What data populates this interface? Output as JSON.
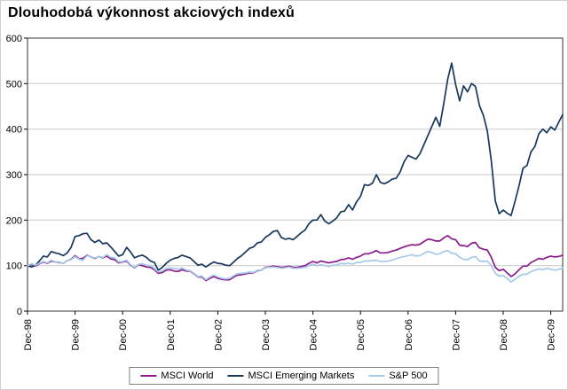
{
  "window": {
    "title": "Dlouhodobá výkonnost akciových indexů"
  },
  "chart_data": {
    "type": "line",
    "title": "Dlouhodobá výkonnost akciových indexů",
    "x_unit": "month",
    "x_tick_labels": [
      "Dec-98",
      "Dec-99",
      "Dec-00",
      "Dec-01",
      "Dec-02",
      "Dec-03",
      "Dec-04",
      "Dec-05",
      "Dec-06",
      "Dec-07",
      "Dec-08",
      "Dec-09"
    ],
    "x_tick_step": 12,
    "ylim": [
      0,
      600
    ],
    "y_ticks": [
      0,
      100,
      200,
      300,
      400,
      500,
      600
    ],
    "grid": "horizontal",
    "grid_color": "#c9c9c9",
    "axis_color": "#000000",
    "legend_position": "bottom",
    "series": [
      {
        "name": "MSCI World",
        "color": "#8b1a8b",
        "values": [
          100,
          102,
          99,
          104,
          108,
          105,
          110,
          108,
          107,
          105,
          111,
          114,
          122,
          115,
          116,
          123,
          119,
          116,
          120,
          117,
          121,
          115,
          113,
          106,
          108,
          110,
          101,
          95,
          102,
          100,
          97,
          96,
          91,
          83,
          85,
          90,
          91,
          88,
          87,
          91,
          88,
          88,
          82,
          75,
          75,
          67,
          72,
          76,
          72,
          70,
          69,
          69,
          75,
          79,
          80,
          82,
          84,
          84,
          89,
          90,
          96,
          97,
          99,
          98,
          96,
          97,
          99,
          96,
          96,
          98,
          100,
          105,
          109,
          106,
          110,
          108,
          106,
          108,
          109,
          113,
          114,
          117,
          114,
          118,
          121,
          126,
          126,
          129,
          133,
          128,
          128,
          129,
          132,
          134,
          138,
          141,
          144,
          146,
          145,
          147,
          153,
          158,
          157,
          154,
          154,
          161,
          166,
          159,
          157,
          145,
          144,
          142,
          149,
          151,
          139,
          136,
          134,
          118,
          96,
          89,
          92,
          84,
          76,
          82,
          91,
          99,
          99,
          107,
          111,
          116,
          114,
          118,
          121,
          119,
          120,
          123
        ]
      },
      {
        "name": "MSCI Emerging Markets",
        "color": "#17375d",
        "values": [
          100,
          97,
          101,
          110,
          121,
          119,
          131,
          128,
          126,
          122,
          128,
          140,
          164,
          166,
          170,
          171,
          157,
          151,
          156,
          148,
          150,
          141,
          131,
          121,
          124,
          140,
          130,
          117,
          121,
          123,
          118,
          110,
          107,
          90,
          96,
          105,
          112,
          116,
          118,
          123,
          120,
          117,
          109,
          101,
          103,
          97,
          103,
          108,
          105,
          104,
          101,
          100,
          108,
          116,
          122,
          130,
          138,
          141,
          150,
          152,
          162,
          168,
          175,
          177,
          162,
          158,
          160,
          157,
          164,
          172,
          178,
          192,
          200,
          200,
          212,
          198,
          192,
          198,
          205,
          218,
          220,
          234,
          222,
          240,
          252,
          278,
          276,
          281,
          300,
          283,
          280,
          284,
          290,
          292,
          306,
          328,
          342,
          338,
          334,
          346,
          366,
          386,
          406,
          426,
          406,
          456,
          510,
          545,
          498,
          462,
          495,
          482,
          500,
          494,
          452,
          430,
          396,
          330,
          242,
          214,
          222,
          215,
          210,
          242,
          276,
          314,
          320,
          350,
          362,
          390,
          400,
          392,
          405,
          398,
          415,
          432
        ]
      },
      {
        "name": "S&P 500",
        "color": "#a6c9e8",
        "values": [
          100,
          104,
          101,
          105,
          109,
          106,
          112,
          108,
          108,
          105,
          111,
          113,
          120,
          114,
          112,
          122,
          119,
          117,
          120,
          118,
          124,
          118,
          117,
          108,
          109,
          112,
          102,
          96,
          103,
          104,
          101,
          100,
          94,
          86,
          88,
          94,
          95,
          94,
          92,
          95,
          90,
          89,
          83,
          76,
          77,
          69,
          75,
          79,
          75,
          72,
          71,
          72,
          78,
          82,
          83,
          84,
          86,
          85,
          90,
          90,
          95,
          96,
          97,
          96,
          94,
          95,
          97,
          94,
          94,
          95,
          96,
          100,
          103,
          100,
          102,
          100,
          98,
          101,
          101,
          105,
          104,
          105,
          103,
          107,
          107,
          110,
          110,
          111,
          112,
          109,
          109,
          110,
          112,
          115,
          118,
          120,
          122,
          124,
          121,
          122,
          127,
          131,
          129,
          125,
          126,
          131,
          133,
          127,
          126,
          118,
          114,
          113,
          118,
          120,
          110,
          109,
          110,
          100,
          83,
          77,
          78,
          72,
          64,
          70,
          77,
          81,
          81,
          87,
          90,
          93,
          91,
          94,
          92,
          90,
          92,
          95
        ]
      }
    ]
  }
}
